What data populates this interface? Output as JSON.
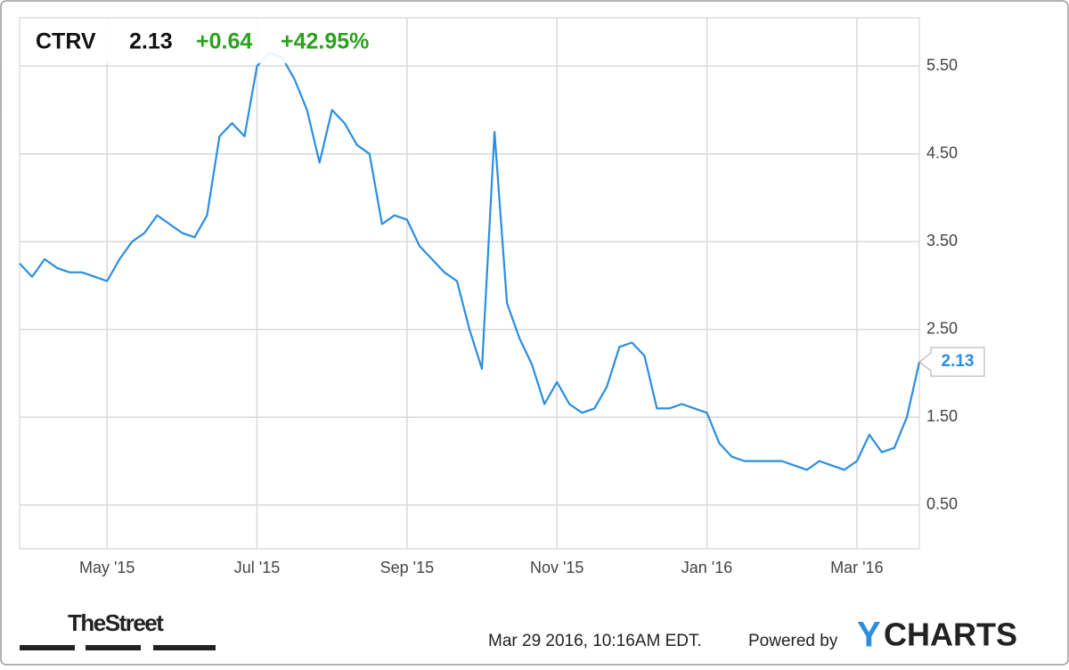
{
  "header": {
    "ticker": "CTRV",
    "price": "2.13",
    "change": "+0.64",
    "change_pct": "+42.95%"
  },
  "chart_data": {
    "type": "line",
    "categories": [
      null,
      null,
      null,
      null,
      null,
      null,
      null,
      "May '15",
      null,
      null,
      null,
      null,
      null,
      null,
      null,
      null,
      null,
      null,
      null,
      "Jul '15",
      null,
      null,
      null,
      null,
      null,
      null,
      null,
      null,
      null,
      null,
      null,
      "Sep '15",
      null,
      null,
      null,
      null,
      null,
      null,
      null,
      null,
      null,
      null,
      null,
      "Nov '15",
      null,
      null,
      null,
      null,
      null,
      null,
      null,
      null,
      null,
      null,
      null,
      "Jan '16",
      null,
      null,
      null,
      null,
      null,
      null,
      null,
      null,
      null,
      null,
      null,
      "Mar '16",
      null,
      null,
      null,
      null,
      null
    ],
    "series": [
      {
        "name": "CTRV",
        "color": "#2b8ee0",
        "values": [
          3.25,
          3.1,
          3.3,
          3.2,
          3.15,
          3.15,
          3.1,
          3.05,
          3.3,
          3.5,
          3.6,
          3.8,
          3.7,
          3.6,
          3.55,
          3.8,
          4.7,
          4.85,
          4.7,
          5.5,
          5.65,
          5.6,
          5.35,
          5.0,
          4.4,
          5.0,
          4.85,
          4.6,
          4.5,
          3.7,
          3.8,
          3.75,
          3.45,
          3.3,
          3.15,
          3.05,
          2.5,
          2.05,
          4.75,
          2.8,
          2.4,
          2.1,
          1.65,
          1.9,
          1.65,
          1.55,
          1.6,
          1.85,
          2.3,
          2.35,
          2.2,
          1.6,
          1.6,
          1.65,
          1.6,
          1.55,
          1.2,
          1.05,
          1.0,
          1.0,
          1.0,
          1.0,
          0.95,
          0.9,
          1.0,
          0.95,
          0.9,
          1.0,
          1.3,
          1.1,
          1.15,
          1.5,
          2.13
        ]
      }
    ],
    "ylim": [
      0,
      6.05
    ],
    "yticks": [
      {
        "value": 0.5,
        "label": "0.50"
      },
      {
        "value": 1.5,
        "label": "1.50"
      },
      {
        "value": 2.5,
        "label": "2.50"
      },
      {
        "value": 3.5,
        "label": "3.50"
      },
      {
        "value": 4.5,
        "label": "4.50"
      },
      {
        "value": 5.5,
        "label": "5.50"
      }
    ],
    "grid": true
  },
  "footer": {
    "brand": "TheStreet",
    "timestamp": "Mar 29 2016, 10:16AM EDT.",
    "powered": "Powered by",
    "logo_y": "Y",
    "logo_rest": "CHARTS"
  }
}
